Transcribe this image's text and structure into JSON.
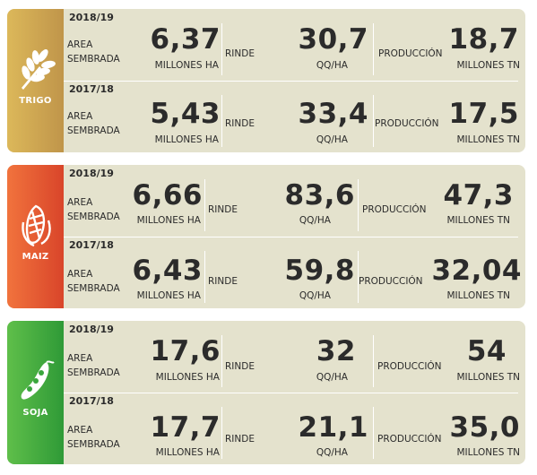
{
  "crops": [
    {
      "name": "TRIGO",
      "rows": [
        {
          "year": "2018/19",
          "area_label_1": "AREA",
          "area_label_2": "SEMBRADA",
          "area_value": "6,37",
          "area_unit": "MILLONES HA",
          "rinde_label": "RINDE",
          "rinde_value": "30,7",
          "rinde_unit": "QQ/HA",
          "prod_label": "PRODUCCIÓN",
          "prod_value": "18,7",
          "prod_unit": "MILLONES TN"
        },
        {
          "year": "2017/18",
          "area_label_1": "AREA",
          "area_label_2": "SEMBRADA",
          "area_value": "5,43",
          "area_unit": "MILLONES HA",
          "rinde_label": "RINDE",
          "rinde_value": "33,4",
          "rinde_unit": "QQ/HA",
          "prod_label": "PRODUCCIÓN",
          "prod_value": "17,5",
          "prod_unit": "MILLONES TN"
        }
      ]
    },
    {
      "name": "MAIZ",
      "rows": [
        {
          "year": "2018/19",
          "area_label_1": "AREA",
          "area_label_2": "SEMBRADA",
          "area_value": "6,66",
          "area_unit": "MILLONES HA",
          "rinde_label": "RINDE",
          "rinde_value": "83,6",
          "rinde_unit": "QQ/HA",
          "prod_label": "PRODUCCIÓN",
          "prod_value": "47,3",
          "prod_unit": "MILLONES TN"
        },
        {
          "year": "2017/18",
          "area_label_1": "AREA",
          "area_label_2": "SEMBRADA",
          "area_value": "6,43",
          "area_unit": "MILLONES HA",
          "rinde_label": "RINDE",
          "rinde_value": "59,8",
          "rinde_unit": "QQ/HA",
          "prod_label": "PRODUCCIÓN",
          "prod_value": "32,04",
          "prod_unit": "MILLONES TN"
        }
      ]
    },
    {
      "name": "SOJA",
      "rows": [
        {
          "year": "2018/19",
          "area_label_1": "AREA",
          "area_label_2": "SEMBRADA",
          "area_value": "17,6",
          "area_unit": "MILLONES HA",
          "rinde_label": "RINDE",
          "rinde_value": "32",
          "rinde_unit": "QQ/HA",
          "prod_label": "PRODUCCIÓN",
          "prod_value": "54",
          "prod_unit": "MILLONES TN"
        },
        {
          "year": "2017/18",
          "area_label_1": "AREA",
          "area_label_2": "SEMBRADA",
          "area_value": "17,7",
          "area_unit": "MILLONES HA",
          "rinde_label": "RINDE",
          "rinde_value": "21,1",
          "rinde_unit": "QQ/HA",
          "prod_label": "PRODUCCIÓN",
          "prod_value": "35,0",
          "prod_unit": "MILLONES TN"
        }
      ]
    }
  ],
  "icons": [
    "wheat-icon",
    "corn-icon",
    "soybean-icon"
  ],
  "colors": {
    "panel": "#e4e2cd",
    "trigo": "#c9a24f",
    "maiz": "#e9582f",
    "soja": "#4bb043",
    "text": "#2b2b2b"
  }
}
